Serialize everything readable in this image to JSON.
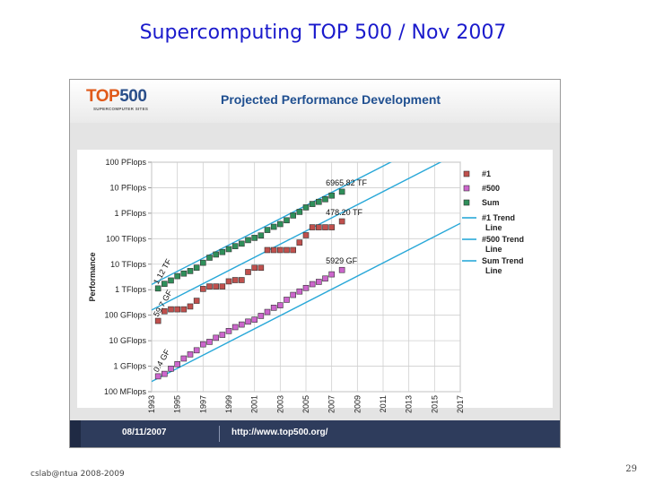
{
  "slide": {
    "title": "Supercomputing TOP 500 / Nov 2007",
    "credit": "cslab@ntua 2008-2009",
    "page_number": "29"
  },
  "panel": {
    "logo_text": "TOP",
    "logo_number": "500",
    "logo_subtitle": "SUPERCOMPUTER SITES",
    "footer_date": "08/11/2007",
    "footer_url": "http://www.top500.org/"
  },
  "colors": {
    "slide_title": "#1a1acc",
    "header_text": "#1f4f90",
    "footer_bg": "#2e3c5c",
    "series_1": "#c0504d",
    "series_500": "#cc66cc",
    "series_sum": "#2f8f5a",
    "trendline": "#29a8d8"
  },
  "chart_data": {
    "type": "scatter",
    "title": "Projected Performance Development",
    "ylabel": "Performance",
    "xlabel": "",
    "log_scale_y": true,
    "grid": true,
    "legend_position": "right",
    "x_ticks": [
      "1993",
      "1995",
      "1997",
      "1999",
      "2001",
      "2003",
      "2005",
      "2007",
      "2009",
      "2011",
      "2013",
      "2015",
      "2017"
    ],
    "x_range": [
      1993,
      2017
    ],
    "y_ticks": [
      "100 MFlops",
      "1 GFlops",
      "10 GFlops",
      "100 GFlops",
      "1 TFlops",
      "10 TFlops",
      "100 TFlops",
      "1 PFlops",
      "10 PFlops",
      "100 PFlops"
    ],
    "y_range_flops": [
      100000000.0,
      1e+17
    ],
    "legend": [
      "#1",
      "#500",
      "Sum",
      "#1 Trend Line",
      "#500 Trend Line",
      "Sum Trend Line"
    ],
    "annotations": [
      {
        "text": "6965.82 TF",
        "series": "Sum",
        "x": 2007.8,
        "y": 6965820000000000.0
      },
      {
        "text": "478.20 TF",
        "series": "#1",
        "x": 2007.8,
        "y": 478200000000000.0
      },
      {
        "text": "5929 GF",
        "series": "#500",
        "x": 2007.8,
        "y": 5929000000000.0
      },
      {
        "text": "1.12 TF",
        "series": "Sum",
        "x": 1993.2,
        "y": 1120000000000.0
      },
      {
        "text": "59.7 GF",
        "series": "#1",
        "x": 1993.2,
        "y": 59700000000.0
      },
      {
        "text": "0.4 GF",
        "series": "#500",
        "x": 1993.2,
        "y": 400000000.0
      }
    ],
    "series": [
      {
        "name": "#1",
        "color": "#c0504d",
        "x": [
          1993.5,
          1994.0,
          1994.5,
          1995.0,
          1995.5,
          1996.0,
          1996.5,
          1997.0,
          1997.5,
          1998.0,
          1998.5,
          1999.0,
          1999.5,
          2000.0,
          2000.5,
          2001.0,
          2001.5,
          2002.0,
          2002.5,
          2003.0,
          2003.5,
          2004.0,
          2004.5,
          2005.0,
          2005.5,
          2006.0,
          2006.5,
          2007.0,
          2007.8
        ],
        "y": [
          59700000000.0,
          143000000000.0,
          170000000000.0,
          170000000000.0,
          170000000000.0,
          220000000000.0,
          368000000000.0,
          1070000000000.0,
          1340000000000.0,
          1340000000000.0,
          1340000000000.0,
          2120000000000.0,
          2380000000000.0,
          2380000000000.0,
          4940000000000.0,
          7230000000000.0,
          7230000000000.0,
          35900000000000.0,
          35900000000000.0,
          35900000000000.0,
          35900000000000.0,
          35900000000000.0,
          70700000000000.0,
          136800000000000.0,
          280600000000000.0,
          280600000000000.0,
          280600000000000.0,
          280600000000000.0,
          478200000000000.0
        ]
      },
      {
        "name": "#500",
        "color": "#cc66cc",
        "x": [
          1993.5,
          1994.0,
          1994.5,
          1995.0,
          1995.5,
          1996.0,
          1996.5,
          1997.0,
          1997.5,
          1998.0,
          1998.5,
          1999.0,
          1999.5,
          2000.0,
          2000.5,
          2001.0,
          2001.5,
          2002.0,
          2002.5,
          2003.0,
          2003.5,
          2004.0,
          2004.5,
          2005.0,
          2005.5,
          2006.0,
          2006.5,
          2007.0,
          2007.8
        ],
        "y": [
          400000000.0,
          500000000.0,
          800000000.0,
          1200000000.0,
          2000000000.0,
          2900000000.0,
          4200000000.0,
          7200000000.0,
          9000000000.0,
          13000000000.0,
          17000000000.0,
          24000000000.0,
          34000000000.0,
          43000000000.0,
          56000000000.0,
          67000000000.0,
          94000000000.0,
          134000000000.0,
          196000000000.0,
          245000000000.0,
          403000000000.0,
          624000000000.0,
          851000000000.0,
          1170000000000.0,
          1650000000000.0,
          2030000000000.0,
          2740000000000.0,
          4000000000000.0,
          5929000000000.0
        ]
      },
      {
        "name": "Sum",
        "color": "#2f8f5a",
        "x": [
          1993.5,
          1994.0,
          1994.5,
          1995.0,
          1995.5,
          1996.0,
          1996.5,
          1997.0,
          1997.5,
          1998.0,
          1998.5,
          1999.0,
          1999.5,
          2000.0,
          2000.5,
          2001.0,
          2001.5,
          2002.0,
          2002.5,
          2003.0,
          2003.5,
          2004.0,
          2004.5,
          2005.0,
          2005.5,
          2006.0,
          2006.5,
          2007.0,
          2007.8
        ],
        "y": [
          1120000000000.0,
          1700000000000.0,
          2300000000000.0,
          3400000000000.0,
          4300000000000.0,
          5400000000000.0,
          7300000000000.0,
          11400000000000.0,
          18000000000000.0,
          24000000000000.0,
          30000000000000.0,
          39000000000000.0,
          51000000000000.0,
          64000000000000.0,
          88000000000000.0,
          108000000000000.0,
          134000000000000.0,
          220000000000000.0,
          293000000000000.0,
          375000000000000.0,
          528000000000000.0,
          813000000000000.0,
          1127000000000000.0,
          1690000000000000.0,
          2300000000000000.0,
          2790000000000000.0,
          3540000000000000.0,
          4920000000000000.0,
          6965820000000000.0
        ]
      }
    ],
    "trend_lines": [
      {
        "name": "#1 Trend Line",
        "x": [
          1993,
          2017
        ],
        "y": [
          160000000000.0,
          2.5e+17
        ]
      },
      {
        "name": "#500 Trend Line",
        "x": [
          1993,
          2017
        ],
        "y": [
          250000000.0,
          400000000000000.0
        ]
      },
      {
        "name": "Sum Trend Line",
        "x": [
          1993,
          2017
        ],
        "y": [
          1600000000000.0,
          2.5e+18
        ]
      }
    ]
  }
}
